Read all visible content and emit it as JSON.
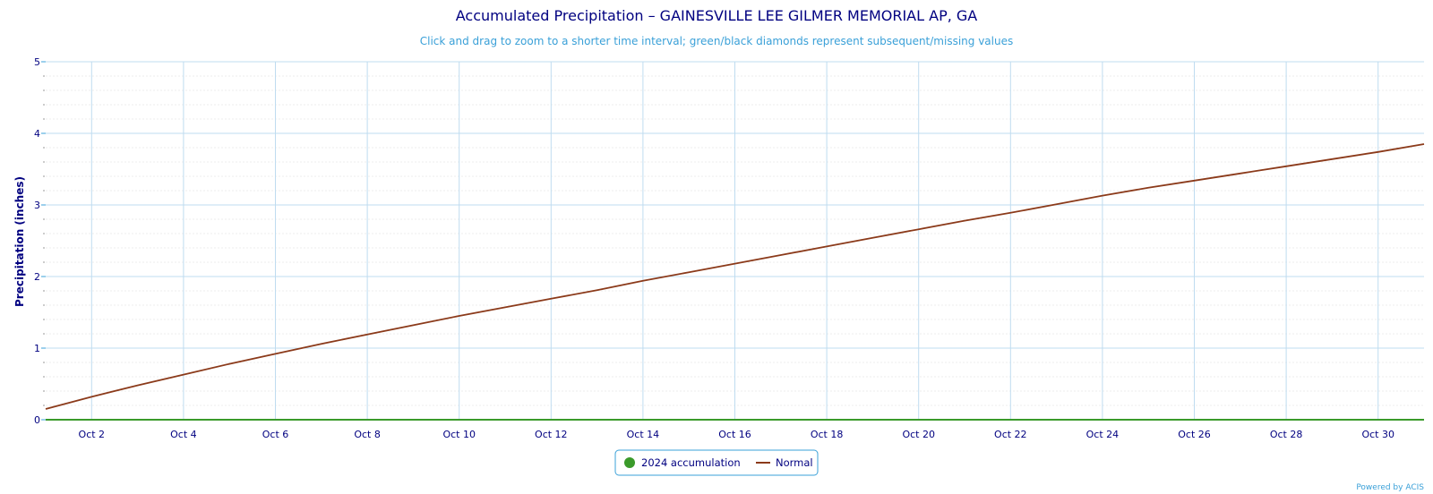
{
  "chart_data": {
    "type": "line",
    "title": "Accumulated Precipitation – GAINESVILLE LEE GILMER MEMORIAL AP, GA",
    "subtitle": "Click and drag to zoom to a shorter time interval; green/black diamonds represent subsequent/missing values",
    "ylabel": "Precipitation (inches)",
    "xlim": [
      "2024-10-01",
      "2024-10-31"
    ],
    "ylim": [
      0,
      5
    ],
    "yticks": [
      0,
      1,
      2,
      3,
      4,
      5
    ],
    "xticks": [
      {
        "date": "2024-10-02",
        "label": "Oct 2"
      },
      {
        "date": "2024-10-04",
        "label": "Oct 4"
      },
      {
        "date": "2024-10-06",
        "label": "Oct 6"
      },
      {
        "date": "2024-10-08",
        "label": "Oct 8"
      },
      {
        "date": "2024-10-10",
        "label": "Oct 10"
      },
      {
        "date": "2024-10-12",
        "label": "Oct 12"
      },
      {
        "date": "2024-10-14",
        "label": "Oct 14"
      },
      {
        "date": "2024-10-16",
        "label": "Oct 16"
      },
      {
        "date": "2024-10-18",
        "label": "Oct 18"
      },
      {
        "date": "2024-10-20",
        "label": "Oct 20"
      },
      {
        "date": "2024-10-22",
        "label": "Oct 22"
      },
      {
        "date": "2024-10-24",
        "label": "Oct 24"
      },
      {
        "date": "2024-10-26",
        "label": "Oct 26"
      },
      {
        "date": "2024-10-28",
        "label": "Oct 28"
      },
      {
        "date": "2024-10-30",
        "label": "Oct 30"
      }
    ],
    "grid": true,
    "legend_position": "bottom-center",
    "series": [
      {
        "name": "2024 accumulation",
        "color": "#3a9a2a",
        "marker": "circle",
        "x": [
          "2024-10-01",
          "2024-10-02",
          "2024-10-03",
          "2024-10-04",
          "2024-10-05",
          "2024-10-06",
          "2024-10-07",
          "2024-10-08",
          "2024-10-09",
          "2024-10-10",
          "2024-10-11",
          "2024-10-12",
          "2024-10-13",
          "2024-10-14",
          "2024-10-15",
          "2024-10-16",
          "2024-10-17",
          "2024-10-18",
          "2024-10-19",
          "2024-10-20",
          "2024-10-21",
          "2024-10-22",
          "2024-10-23",
          "2024-10-24",
          "2024-10-25",
          "2024-10-26",
          "2024-10-27",
          "2024-10-28",
          "2024-10-29",
          "2024-10-30",
          "2024-10-31"
        ],
        "y": [
          0,
          0,
          0,
          0,
          0,
          0,
          0,
          0,
          0,
          0,
          0,
          0,
          0,
          0,
          0,
          0,
          0,
          0,
          0,
          0,
          0,
          0,
          0,
          0,
          0,
          0,
          0,
          0,
          0,
          0,
          0
        ]
      },
      {
        "name": "Normal",
        "color": "#8b3a1a",
        "x": [
          "2024-10-01",
          "2024-10-02",
          "2024-10-03",
          "2024-10-04",
          "2024-10-05",
          "2024-10-06",
          "2024-10-07",
          "2024-10-08",
          "2024-10-09",
          "2024-10-10",
          "2024-10-11",
          "2024-10-12",
          "2024-10-13",
          "2024-10-14",
          "2024-10-15",
          "2024-10-16",
          "2024-10-17",
          "2024-10-18",
          "2024-10-19",
          "2024-10-20",
          "2024-10-21",
          "2024-10-22",
          "2024-10-23",
          "2024-10-24",
          "2024-10-25",
          "2024-10-26",
          "2024-10-27",
          "2024-10-28",
          "2024-10-29",
          "2024-10-30",
          "2024-10-31"
        ],
        "y": [
          0.15,
          0.32,
          0.48,
          0.63,
          0.78,
          0.92,
          1.06,
          1.19,
          1.32,
          1.45,
          1.57,
          1.69,
          1.81,
          1.94,
          2.06,
          2.18,
          2.3,
          2.42,
          2.54,
          2.66,
          2.78,
          2.89,
          3.01,
          3.13,
          3.24,
          3.34,
          3.44,
          3.54,
          3.64,
          3.74,
          3.85
        ]
      }
    ]
  },
  "footer": {
    "credit": "Powered by ACIS"
  }
}
